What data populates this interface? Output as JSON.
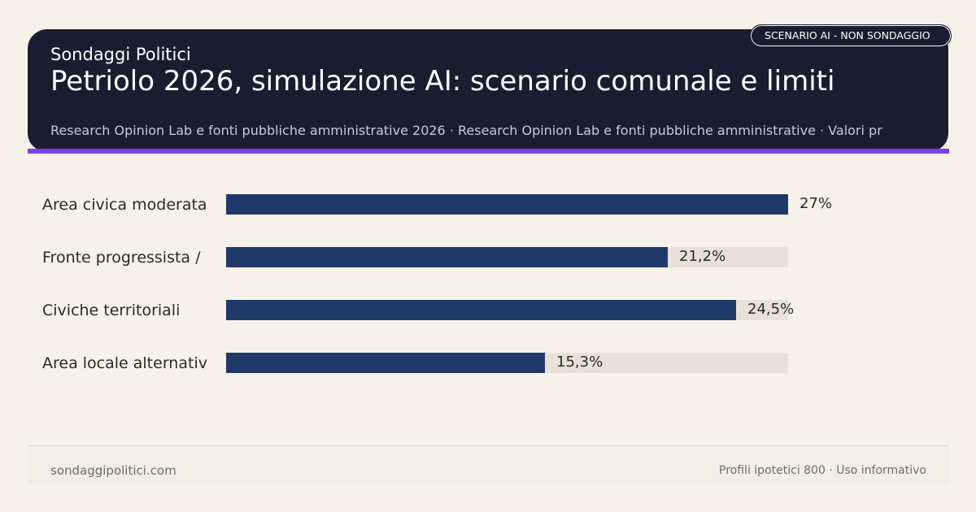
{
  "header": {
    "brand": "Sondaggi Politici",
    "title": "Petriolo 2026, simulazione AI: scenario comunale e limiti",
    "source": "Research Opinion Lab e fonti pubbliche amministrative 2026 · Research Opinion Lab e fonti pubbliche amministrative · Valori pr",
    "badge": "SCENARIO AI - NON SONDAGGIO"
  },
  "colors": {
    "header_bg": "#1c1c30",
    "accent": "#7b3fe4",
    "bar": "#1f3a68",
    "track": "#e8e1d8",
    "background": "#f6f2ea"
  },
  "chart_data": {
    "type": "bar",
    "orientation": "horizontal",
    "categories": [
      "Area civica moderata",
      "Fronte progressista /",
      "Civiche territoriali",
      "Area locale alternativ"
    ],
    "values": [
      27,
      21.2,
      24.5,
      15.3
    ],
    "value_labels": [
      "27%",
      "21,2%",
      "24,5%",
      "15,3%"
    ],
    "xlim": [
      0,
      27
    ],
    "grid": false
  },
  "footer": {
    "site": "sondaggipolitici.com",
    "note": "Profili ipotetici 800 · Uso informativo"
  }
}
